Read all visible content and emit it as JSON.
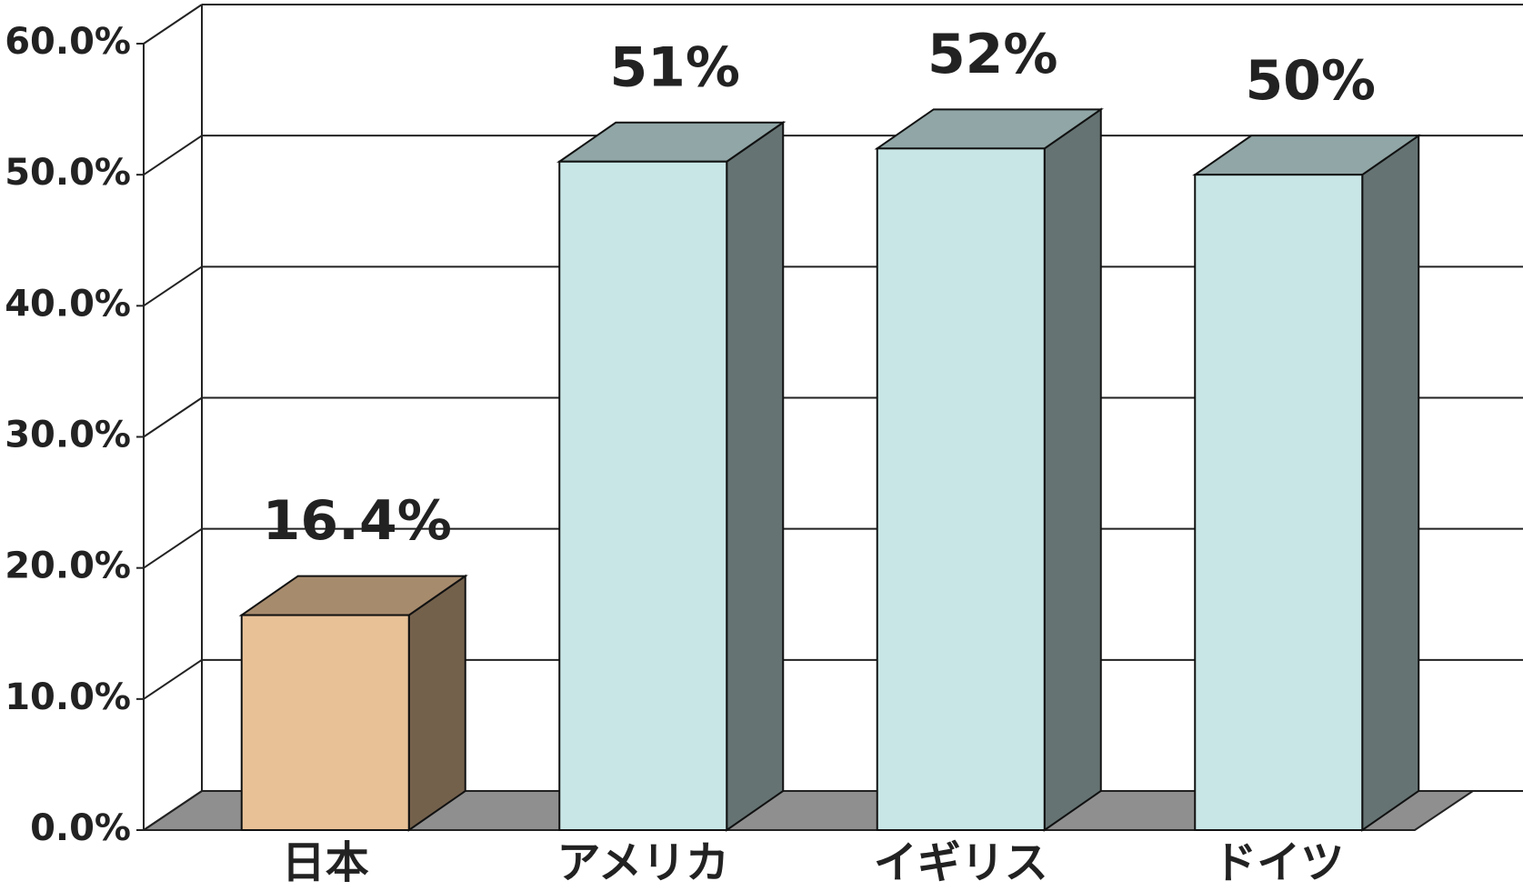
{
  "chart_data": {
    "type": "bar3d",
    "categories": [
      "日本",
      "アメリカ",
      "イギリス",
      "ドイツ"
    ],
    "values": [
      16.4,
      51,
      52,
      50
    ],
    "value_labels": [
      "16.4%",
      "51%",
      "52%",
      "50%"
    ],
    "colors": [
      "#e8c197",
      "#c9e6e6",
      "#c9e6e6",
      "#c9e6e6"
    ],
    "ylim": [
      0,
      60
    ],
    "yticks": [
      {
        "value": 0,
        "label": "0.0%"
      },
      {
        "value": 10,
        "label": "10.0%"
      },
      {
        "value": 20,
        "label": "20.0%"
      },
      {
        "value": 30,
        "label": "30.0%"
      },
      {
        "value": 40,
        "label": "40.0%"
      },
      {
        "value": 50,
        "label": "50.0%"
      },
      {
        "value": 60,
        "label": "60.0%"
      }
    ],
    "grid": true
  }
}
